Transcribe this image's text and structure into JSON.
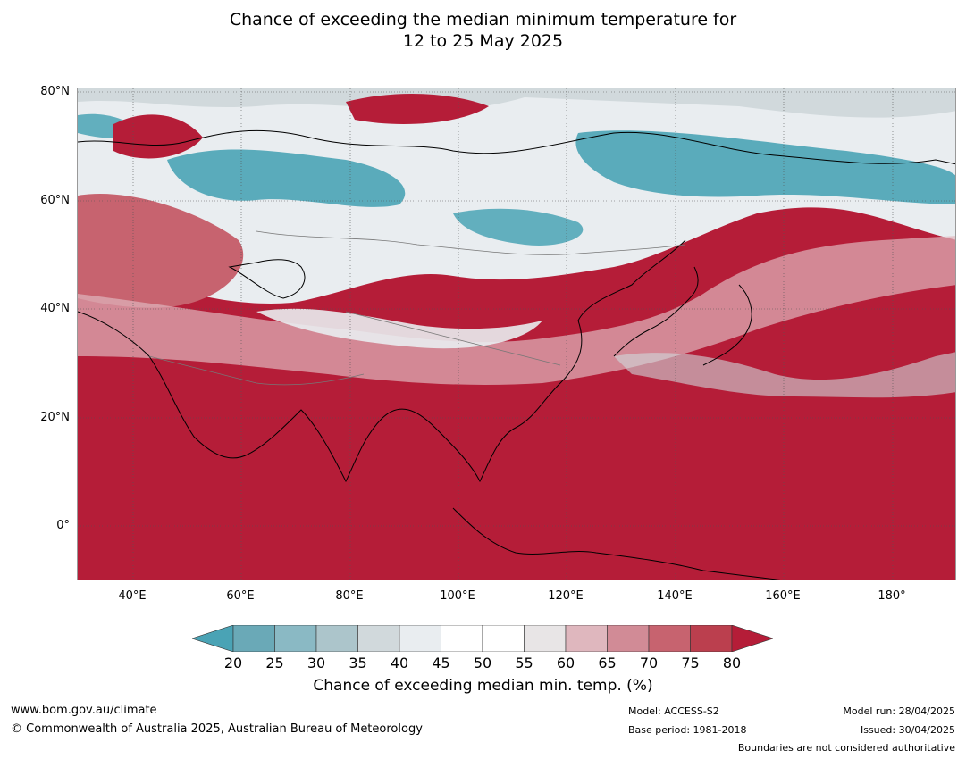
{
  "title_line1": "Chance of exceeding the median minimum temperature for",
  "title_line2": "12 to 25 May 2025",
  "lat_labels": [
    "80°N",
    "60°N",
    "40°N",
    "20°N",
    "0°"
  ],
  "lon_labels": [
    "40°E",
    "60°E",
    "80°E",
    "100°E",
    "120°E",
    "140°E",
    "160°E",
    "180°"
  ],
  "colorbar": {
    "ticks": [
      "20",
      "25",
      "30",
      "35",
      "40",
      "45",
      "50",
      "55",
      "60",
      "65",
      "70",
      "75",
      "80"
    ],
    "colors": [
      "#4aa3b5",
      "#6aa9b7",
      "#8ab9c4",
      "#acc5cb",
      "#d1d9dc",
      "#e9edf0",
      "#ffffff",
      "#ffffff",
      "#e8e5e6",
      "#dfb7be",
      "#d18b96",
      "#c7636f",
      "#bb3f4e",
      "#b51d38"
    ],
    "label": "Chance of exceeding median min. temp. (%)"
  },
  "footer": {
    "url": "www.bom.gov.au/climate",
    "copyright": "© Commonwealth of Australia 2025, Australian Bureau of Meteorology",
    "model": "Model: ACCESS-S2",
    "base_period": "Base period: 1981-2018",
    "model_run": "Model run: 28/04/2025",
    "issued": "Issued: 30/04/2025",
    "boundaries": "Boundaries are not considered authoritative"
  }
}
